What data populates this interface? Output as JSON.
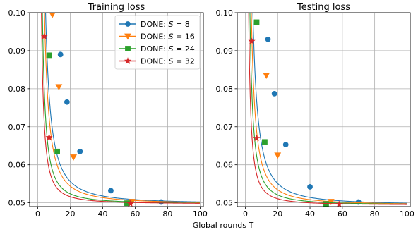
{
  "xlabel": "Global rounds T",
  "chart_data": [
    {
      "type": "line",
      "title": "Training loss",
      "xlim": [
        -5,
        102
      ],
      "ylim": [
        0.049,
        0.1
      ],
      "xticks": [
        0,
        20,
        40,
        60,
        80,
        100
      ],
      "yticks": [
        0.05,
        0.06,
        0.07,
        0.08,
        0.09,
        0.1
      ],
      "ytick_labels": [
        "0.05",
        "0.06",
        "0.07",
        "0.08",
        "0.09",
        "0.10"
      ],
      "grid": true,
      "legend": "top-right",
      "asymptote": 0.0497,
      "series": [
        {
          "name": "DONE: S = 8",
          "color": "#1f77b4",
          "marker": "circle",
          "k": 0.53,
          "marker_points": [
            [
              14,
              0.089
            ],
            [
              18,
              0.0765
            ],
            [
              26,
              0.0635
            ],
            [
              45,
              0.0532
            ],
            [
              76,
              0.0502
            ]
          ]
        },
        {
          "name": "DONE: S = 16",
          "color": "#ff7f0e",
          "marker": "triangle",
          "k": 0.42,
          "marker_points": [
            [
              9,
              0.0995
            ],
            [
              13,
              0.0805
            ],
            [
              22,
              0.062
            ],
            [
              58,
              0.0503
            ]
          ]
        },
        {
          "name": "DONE: S = 24",
          "color": "#2ca02c",
          "marker": "square",
          "k": 0.24,
          "marker_points": [
            [
              7,
              0.0888
            ],
            [
              12,
              0.0635
            ],
            [
              55,
              0.0499
            ]
          ]
        },
        {
          "name": "DONE: S = 32",
          "color": "#d62728",
          "marker": "star",
          "k": 0.17,
          "marker_points": [
            [
              4,
              0.0938
            ],
            [
              7,
              0.0672
            ],
            [
              57,
              0.0498
            ]
          ]
        }
      ]
    },
    {
      "type": "line",
      "title": "Testing loss",
      "xlim": [
        -5,
        102
      ],
      "ylim": [
        0.049,
        0.1
      ],
      "xticks": [
        0,
        20,
        40,
        60,
        80,
        100
      ],
      "yticks": [
        0.05,
        0.06,
        0.07,
        0.08,
        0.09,
        0.1
      ],
      "ytick_labels": [
        "0.05",
        "0.06",
        "0.07",
        "0.08",
        "0.09",
        "0.10"
      ],
      "grid": true,
      "asymptote": 0.0494,
      "series": [
        {
          "name": "DONE: S = 8",
          "color": "#1f77b4",
          "marker": "circle",
          "k": 0.51,
          "marker_points": [
            [
              14,
              0.093
            ],
            [
              18,
              0.0787
            ],
            [
              25,
              0.0653
            ],
            [
              40,
              0.0542
            ],
            [
              70,
              0.0502
            ]
          ]
        },
        {
          "name": "DONE: S = 16",
          "color": "#ff7f0e",
          "marker": "triangle",
          "k": 0.36,
          "marker_points": [
            [
              13,
              0.0835
            ],
            [
              20,
              0.0625
            ],
            [
              53,
              0.0503
            ]
          ]
        },
        {
          "name": "DONE: S = 24",
          "color": "#2ca02c",
          "marker": "square",
          "k": 0.24,
          "marker_points": [
            [
              7,
              0.0975
            ],
            [
              12,
              0.066
            ],
            [
              50,
              0.0497
            ]
          ]
        },
        {
          "name": "DONE: S = 32",
          "color": "#d62728",
          "marker": "star",
          "k": 0.15,
          "marker_points": [
            [
              4,
              0.0925
            ],
            [
              7,
              0.067
            ],
            [
              58,
              0.0496
            ]
          ]
        }
      ]
    }
  ]
}
